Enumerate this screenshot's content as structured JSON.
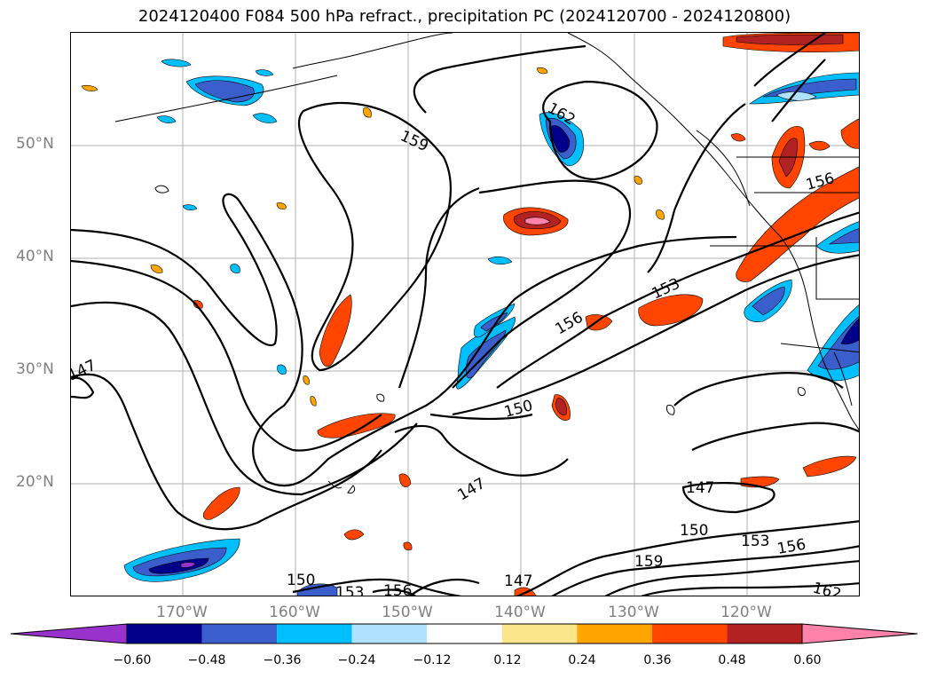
{
  "title": "2024120400 F084 500 hPa refract., precipitation PC (2024120700 - 2024120800)",
  "lat_labels": [
    "50°N",
    "40°N",
    "30°N",
    "20°N"
  ],
  "lon_labels": [
    "170°W",
    "160°W",
    "150°W",
    "140°W",
    "130°W",
    "120°W"
  ],
  "contour_labels": [
    {
      "text": "162"
    },
    {
      "text": "159"
    },
    {
      "text": "156"
    },
    {
      "text": "153"
    },
    {
      "text": "156"
    },
    {
      "text": "150"
    },
    {
      "text": "147"
    },
    {
      "text": "147"
    },
    {
      "text": "147"
    },
    {
      "text": "150"
    },
    {
      "text": "153"
    },
    {
      "text": "156"
    },
    {
      "text": "159"
    },
    {
      "text": "150"
    },
    {
      "text": "153"
    },
    {
      "text": "156"
    },
    {
      "text": "147"
    },
    {
      "text": "162"
    }
  ],
  "colorbar": {
    "ticks": [
      "−0.60",
      "−0.48",
      "−0.36",
      "−0.24",
      "−0.12",
      "0.12",
      "0.24",
      "0.36",
      "0.48",
      "0.60"
    ],
    "colors": [
      "#9932cc",
      "#00008b",
      "#3a5fcd",
      "#00bfff",
      "#b0e2ff",
      "#ffffff",
      "#fce68c",
      "#ffa500",
      "#ff4500",
      "#b22222",
      "#ff82ab"
    ]
  }
}
